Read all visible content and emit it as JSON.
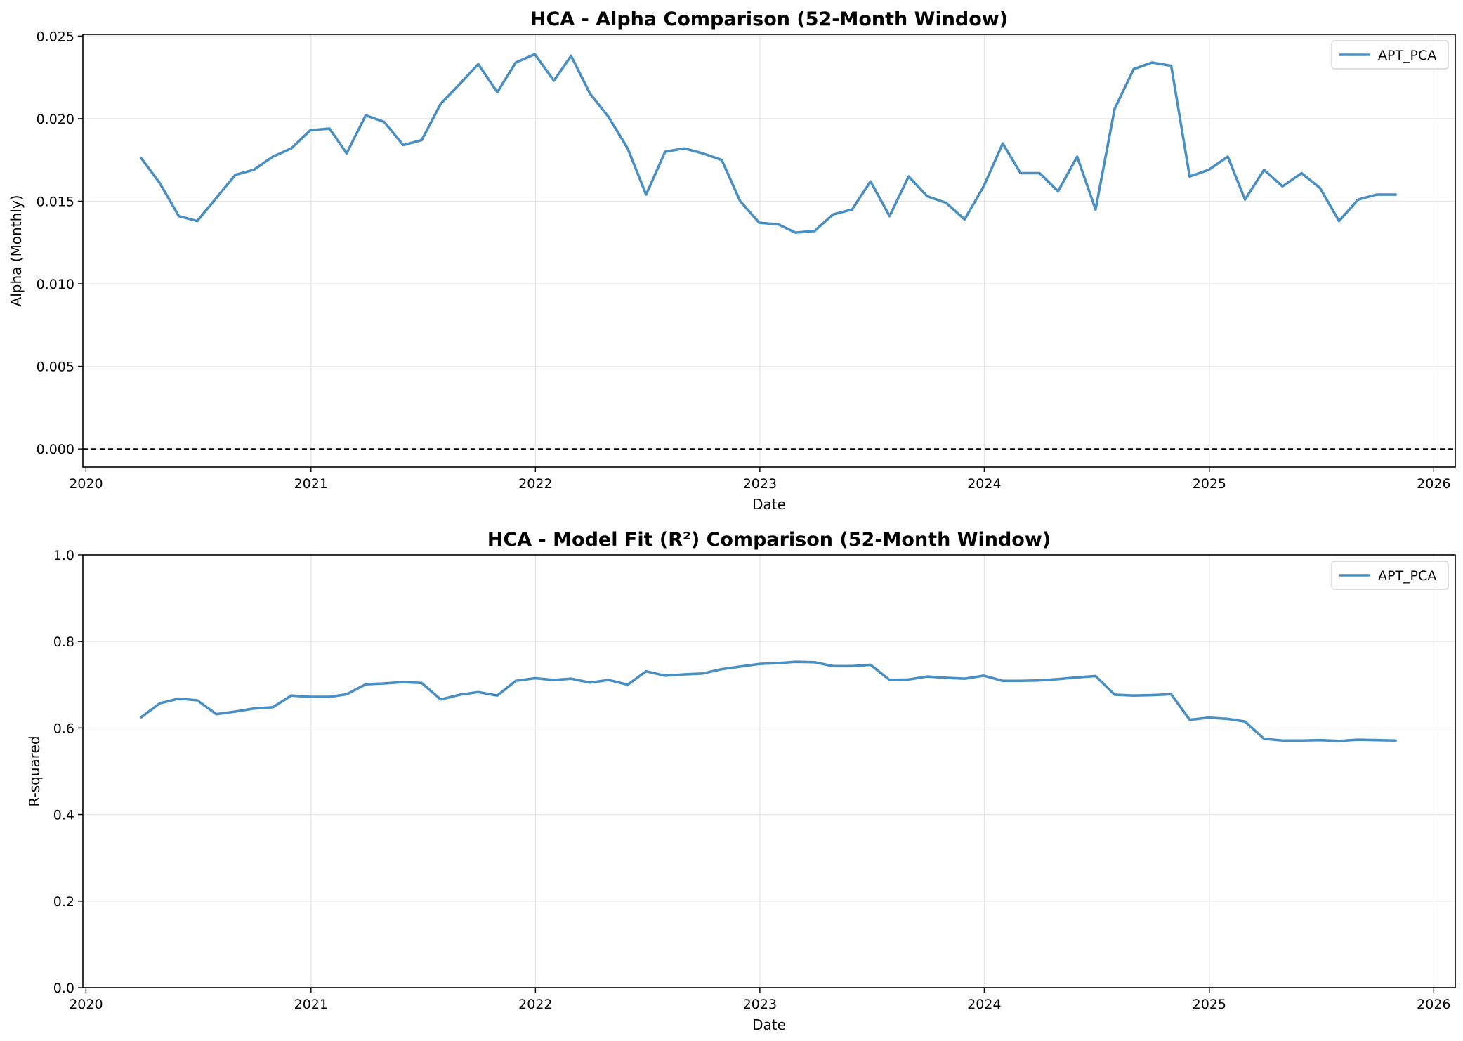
{
  "chart_data": [
    {
      "type": "line",
      "title": "HCA - Alpha Comparison (52-Month Window)",
      "xlabel": "Date",
      "ylabel": "Alpha (Monthly)",
      "xlim": [
        "2019-12-27",
        "2026-02-05"
      ],
      "ylim": [
        -0.0011,
        0.0251
      ],
      "x_ticks": [
        "2020-01-01",
        "2021-01-01",
        "2022-01-01",
        "2023-01-01",
        "2024-01-01",
        "2025-01-01",
        "2026-01-01"
      ],
      "x_tick_labels": [
        "2020",
        "2021",
        "2022",
        "2023",
        "2024",
        "2025",
        "2026"
      ],
      "y_ticks": [
        0.0,
        0.005,
        0.01,
        0.015,
        0.02,
        0.025
      ],
      "y_tick_labels": [
        "0.000",
        "0.005",
        "0.010",
        "0.015",
        "0.020",
        "0.025"
      ],
      "grid": true,
      "legend": "top-right",
      "reference_line": {
        "y": 0,
        "style": "dashed",
        "color": "#000000"
      },
      "x": [
        "2020-03-31",
        "2020-04-30",
        "2020-05-31",
        "2020-06-30",
        "2020-07-31",
        "2020-08-31",
        "2020-09-30",
        "2020-10-31",
        "2020-11-30",
        "2020-12-31",
        "2021-01-31",
        "2021-02-28",
        "2021-03-31",
        "2021-04-30",
        "2021-05-31",
        "2021-06-30",
        "2021-07-31",
        "2021-08-31",
        "2021-09-30",
        "2021-10-31",
        "2021-11-30",
        "2021-12-31",
        "2022-01-31",
        "2022-02-28",
        "2022-03-31",
        "2022-04-30",
        "2022-05-31",
        "2022-06-30",
        "2022-07-31",
        "2022-08-31",
        "2022-09-30",
        "2022-10-31",
        "2022-11-30",
        "2022-12-31",
        "2023-01-31",
        "2023-02-28",
        "2023-03-31",
        "2023-04-30",
        "2023-05-31",
        "2023-06-30",
        "2023-07-31",
        "2023-08-31",
        "2023-09-30",
        "2023-10-31",
        "2023-11-30",
        "2023-12-31",
        "2024-01-31",
        "2024-02-29",
        "2024-03-31",
        "2024-04-30",
        "2024-05-31",
        "2024-06-30",
        "2024-07-31",
        "2024-08-31",
        "2024-09-30",
        "2024-10-31",
        "2024-11-30",
        "2024-12-31",
        "2025-01-31",
        "2025-02-28",
        "2025-03-31",
        "2025-04-30",
        "2025-05-31",
        "2025-06-30",
        "2025-07-31",
        "2025-08-31",
        "2025-09-30",
        "2025-10-31"
      ],
      "series": [
        {
          "name": "APT_PCA",
          "color": "#4a8fc4",
          "values": [
            0.0176,
            0.0161,
            0.0141,
            0.0138,
            0.0152,
            0.0166,
            0.0169,
            0.0177,
            0.0182,
            0.0193,
            0.0194,
            0.0179,
            0.0202,
            0.0198,
            0.0184,
            0.0187,
            0.0209,
            0.0221,
            0.0233,
            0.0216,
            0.0234,
            0.0239,
            0.0223,
            0.0238,
            0.0215,
            0.0201,
            0.0182,
            0.0154,
            0.018,
            0.0182,
            0.0179,
            0.0175,
            0.015,
            0.0137,
            0.0136,
            0.0131,
            0.0132,
            0.0142,
            0.0145,
            0.0162,
            0.0141,
            0.0165,
            0.0153,
            0.0149,
            0.0139,
            0.0159,
            0.0185,
            0.0167,
            0.0167,
            0.0156,
            0.0177,
            0.0145,
            0.0206,
            0.023,
            0.0234,
            0.0232,
            0.0165,
            0.0169,
            0.0177,
            0.0151,
            0.0169,
            0.0159,
            0.0167,
            0.0158,
            0.0138,
            0.0151,
            0.0154,
            0.0154
          ]
        }
      ]
    },
    {
      "type": "line",
      "title": "HCA - Model Fit (R²) Comparison (52-Month Window)",
      "xlabel": "Date",
      "ylabel": "R-squared",
      "xlim": [
        "2019-12-27",
        "2026-02-05"
      ],
      "ylim": [
        0.0,
        1.0
      ],
      "x_ticks": [
        "2020-01-01",
        "2021-01-01",
        "2022-01-01",
        "2023-01-01",
        "2024-01-01",
        "2025-01-01",
        "2026-01-01"
      ],
      "x_tick_labels": [
        "2020",
        "2021",
        "2022",
        "2023",
        "2024",
        "2025",
        "2026"
      ],
      "y_ticks": [
        0.0,
        0.2,
        0.4,
        0.6,
        0.8,
        1.0
      ],
      "y_tick_labels": [
        "0.0",
        "0.2",
        "0.4",
        "0.6",
        "0.8",
        "1.0"
      ],
      "grid": true,
      "legend": "top-right",
      "x": [
        "2020-03-31",
        "2020-04-30",
        "2020-05-31",
        "2020-06-30",
        "2020-07-31",
        "2020-08-31",
        "2020-09-30",
        "2020-10-31",
        "2020-11-30",
        "2020-12-31",
        "2021-01-31",
        "2021-02-28",
        "2021-03-31",
        "2021-04-30",
        "2021-05-31",
        "2021-06-30",
        "2021-07-31",
        "2021-08-31",
        "2021-09-30",
        "2021-10-31",
        "2021-11-30",
        "2021-12-31",
        "2022-01-31",
        "2022-02-28",
        "2022-03-31",
        "2022-04-30",
        "2022-05-31",
        "2022-06-30",
        "2022-07-31",
        "2022-08-31",
        "2022-09-30",
        "2022-10-31",
        "2022-11-30",
        "2022-12-31",
        "2023-01-31",
        "2023-02-28",
        "2023-03-31",
        "2023-04-30",
        "2023-05-31",
        "2023-06-30",
        "2023-07-31",
        "2023-08-31",
        "2023-09-30",
        "2023-10-31",
        "2023-11-30",
        "2023-12-31",
        "2024-01-31",
        "2024-02-29",
        "2024-03-31",
        "2024-04-30",
        "2024-05-31",
        "2024-06-30",
        "2024-07-31",
        "2024-08-31",
        "2024-09-30",
        "2024-10-31",
        "2024-11-30",
        "2024-12-31",
        "2025-01-31",
        "2025-02-28",
        "2025-03-31",
        "2025-04-30",
        "2025-05-31",
        "2025-06-30",
        "2025-07-31",
        "2025-08-31",
        "2025-09-30",
        "2025-10-31"
      ],
      "series": [
        {
          "name": "APT_PCA",
          "color": "#4a8fc4",
          "values": [
            0.625,
            0.657,
            0.668,
            0.664,
            0.632,
            0.638,
            0.645,
            0.648,
            0.675,
            0.672,
            0.672,
            0.678,
            0.701,
            0.703,
            0.706,
            0.704,
            0.666,
            0.677,
            0.683,
            0.675,
            0.709,
            0.715,
            0.711,
            0.714,
            0.705,
            0.711,
            0.7,
            0.731,
            0.721,
            0.724,
            0.726,
            0.736,
            0.742,
            0.748,
            0.75,
            0.753,
            0.752,
            0.743,
            0.743,
            0.746,
            0.711,
            0.712,
            0.719,
            0.716,
            0.714,
            0.721,
            0.709,
            0.709,
            0.71,
            0.713,
            0.717,
            0.72,
            0.677,
            0.675,
            0.676,
            0.678,
            0.619,
            0.624,
            0.621,
            0.615,
            0.575,
            0.571,
            0.571,
            0.572,
            0.57,
            0.573,
            0.572,
            0.571
          ]
        }
      ]
    }
  ]
}
